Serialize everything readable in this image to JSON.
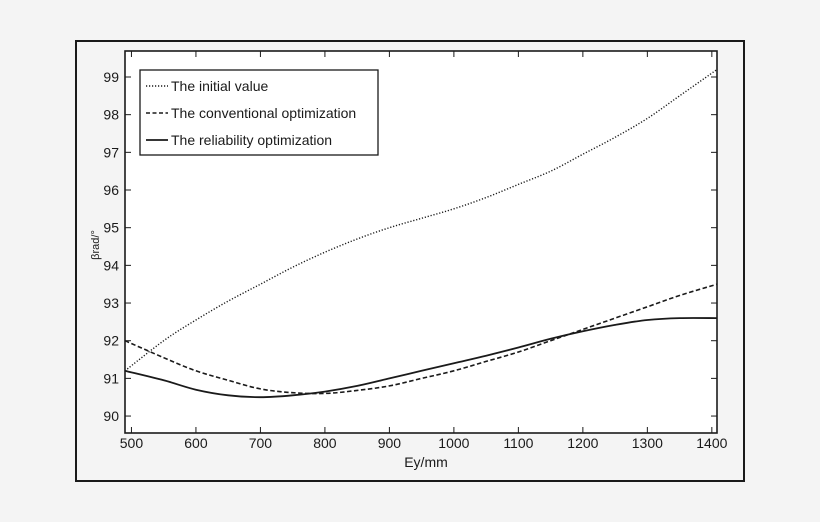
{
  "chart_data": {
    "type": "line",
    "title": "",
    "xlabel": "Ey/mm",
    "ylabel": "βrad/°",
    "xlim": [
      490,
      1408
    ],
    "ylim": [
      89.55,
      99.69
    ],
    "xticks": [
      500,
      600,
      700,
      800,
      900,
      1000,
      1100,
      1200,
      1300,
      1400
    ],
    "yticks": [
      90,
      91,
      92,
      93,
      94,
      95,
      96,
      97,
      98,
      99
    ],
    "grid": false,
    "legend_position": "upper left",
    "x": [
      490,
      550,
      600,
      650,
      700,
      750,
      800,
      850,
      900,
      950,
      1000,
      1050,
      1100,
      1150,
      1200,
      1250,
      1300,
      1350,
      1408
    ],
    "series": [
      {
        "name": "The initial value",
        "style": "dotted",
        "values": [
          91.2,
          92.0,
          92.55,
          93.05,
          93.5,
          93.95,
          94.35,
          94.7,
          95.0,
          95.25,
          95.5,
          95.8,
          96.15,
          96.5,
          96.95,
          97.4,
          97.9,
          98.5,
          99.2
        ]
      },
      {
        "name": "The conventional optimization",
        "style": "dashed",
        "values": [
          92.0,
          91.55,
          91.2,
          90.95,
          90.72,
          90.62,
          90.6,
          90.68,
          90.8,
          91.0,
          91.2,
          91.45,
          91.7,
          92.0,
          92.3,
          92.6,
          92.9,
          93.2,
          93.5
        ]
      },
      {
        "name": "The reliability optimization",
        "style": "solid",
        "values": [
          91.2,
          90.95,
          90.7,
          90.55,
          90.5,
          90.55,
          90.65,
          90.8,
          91.0,
          91.2,
          91.4,
          91.6,
          91.82,
          92.05,
          92.25,
          92.42,
          92.55,
          92.6,
          92.6
        ]
      }
    ]
  },
  "colors": {
    "background": "#f4f4f4",
    "plot_background": "#ffffff",
    "axis": "#1a1a1a",
    "line": "#1a1a1a"
  }
}
